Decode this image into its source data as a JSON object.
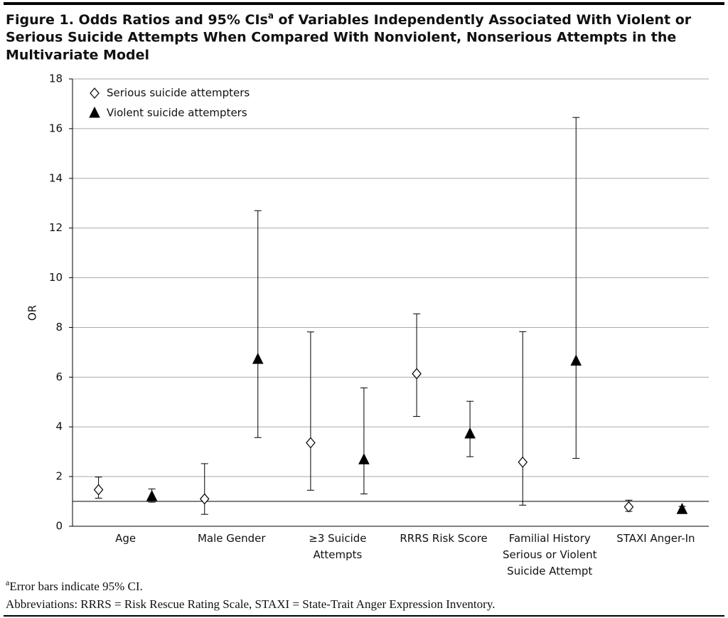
{
  "chart_data": {
    "type": "errorbar",
    "title_lines": [
      [
        "Figure 1. Odds Ratios and 95% CIs",
        "a",
        " of Variables Independently Associated With Violent or"
      ],
      [
        "Serious Suicide Attempts When Compared With Nonviolent, Nonserious Attempts in the"
      ],
      [
        "Multivariate Model"
      ]
    ],
    "y_label": "OR",
    "categories": [
      "Age",
      "Male Gender",
      "≥3 Suicide\nAttempts",
      "RRRS Risk Score",
      "Familial History\nSerious or Violent\nSuicide Attempt",
      "STAXI Anger-In"
    ],
    "series": [
      {
        "name": "Serious suicide attempters",
        "marker": "diamond",
        "color": "#ffffff",
        "values": [
          1.47,
          1.1,
          3.36,
          6.14,
          2.58,
          0.78
        ],
        "ci_low": [
          1.13,
          0.48,
          1.45,
          4.42,
          0.85,
          0.6
        ],
        "ci_high": [
          1.98,
          2.52,
          7.82,
          8.55,
          7.83,
          1.05
        ]
      },
      {
        "name": "Violent suicide attempters",
        "marker": "triangle",
        "color": "#000000",
        "values": [
          1.2,
          6.72,
          2.68,
          3.72,
          6.65,
          0.68
        ],
        "ci_low": [
          0.97,
          3.57,
          1.3,
          2.8,
          2.73,
          0.6
        ],
        "ci_high": [
          1.5,
          12.7,
          5.57,
          5.03,
          16.45,
          0.8
        ]
      }
    ],
    "ylim": [
      0,
      18
    ],
    "yticks": [
      0,
      2,
      4,
      6,
      8,
      10,
      12,
      14,
      16,
      18
    ],
    "grid": true,
    "reference_line": 1,
    "legend": "upper left",
    "footnote_marker": "a",
    "footnotes": [
      "Error bars indicate 95% CI.",
      "Abbreviations: RRRS = Risk Rescue Rating Scale, STAXI = State-Trait Anger Expression Inventory."
    ]
  }
}
